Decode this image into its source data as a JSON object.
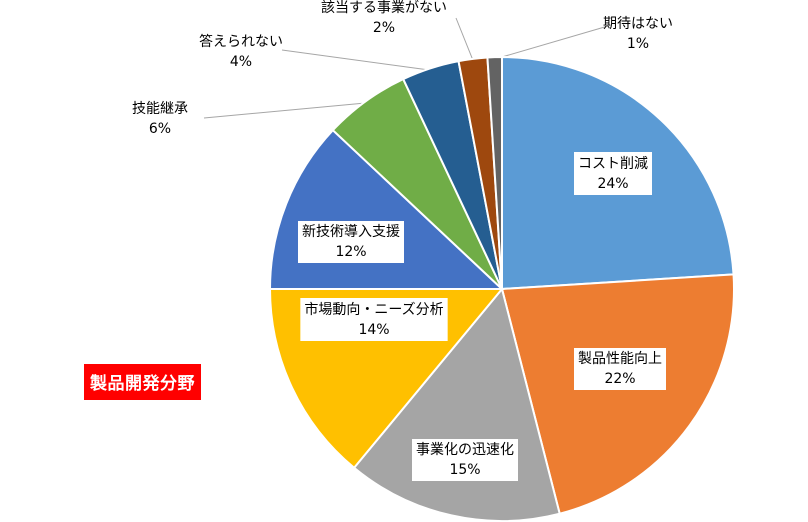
{
  "badge": {
    "text": "製品開発分野",
    "color": "#ff0000"
  },
  "chart_data": {
    "type": "pie",
    "title": "",
    "start": "12 o'clock",
    "direction": "clockwise",
    "slices": [
      {
        "name": "コスト削減",
        "value": 24,
        "label": "24%",
        "color": "#5b9bd5",
        "label_style": "boxed"
      },
      {
        "name": "製品性能向上",
        "value": 22,
        "label": "22%",
        "color": "#ed7d31",
        "label_style": "boxed"
      },
      {
        "name": "事業化の迅速化",
        "value": 15,
        "label": "15%",
        "color": "#a5a5a5",
        "label_style": "boxed"
      },
      {
        "name": "市場動向・ニーズ分析",
        "value": 14,
        "label": "14%",
        "color": "#ffc000",
        "label_style": "boxed"
      },
      {
        "name": "新技術導入支援",
        "value": 12,
        "label": "12%",
        "color": "#4472c4",
        "label_style": "boxed"
      },
      {
        "name": "技能継承",
        "value": 6,
        "label": "6%",
        "color": "#70ad47",
        "label_style": "leader"
      },
      {
        "name": "答えられない",
        "value": 4,
        "label": "4%",
        "color": "#255e91",
        "label_style": "leader"
      },
      {
        "name": "該当する事業がない",
        "value": 2,
        "label": "2%",
        "color": "#9e480e",
        "label_style": "leader"
      },
      {
        "name": "期待はない",
        "value": 1,
        "label": "1%",
        "color": "#636363",
        "label_style": "leader"
      }
    ]
  }
}
